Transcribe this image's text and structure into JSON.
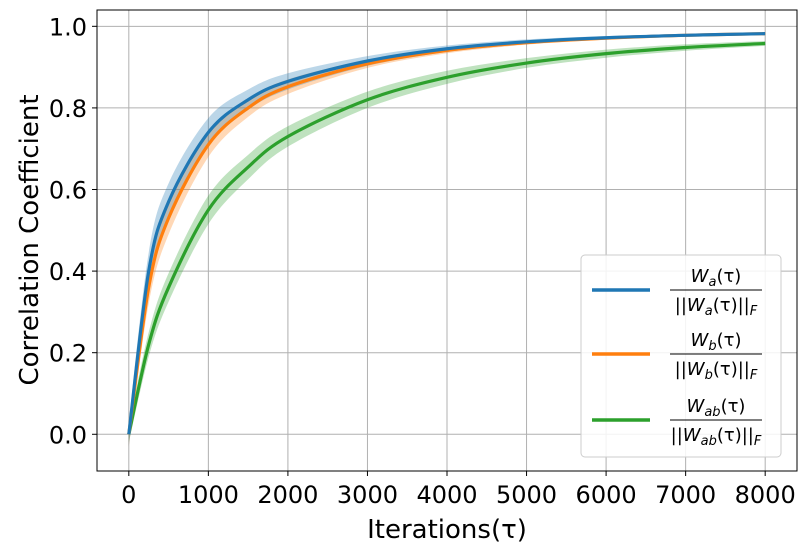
{
  "chart_data": {
    "type": "line",
    "xlabel": "Iterations(τ)",
    "ylabel": "Correlation Coefficient",
    "xlim": [
      -400,
      8400
    ],
    "ylim": [
      -0.09,
      1.04
    ],
    "xticks": [
      0,
      1000,
      2000,
      3000,
      4000,
      5000,
      6000,
      7000,
      8000
    ],
    "xtick_labels": [
      "0",
      "1000",
      "2000",
      "3000",
      "4000",
      "5000",
      "6000",
      "7000",
      "8000"
    ],
    "yticks": [
      0.0,
      0.2,
      0.4,
      0.6,
      0.8,
      1.0
    ],
    "ytick_labels": [
      "0.0",
      "0.2",
      "0.4",
      "0.6",
      "0.8",
      "1.0"
    ],
    "grid": true,
    "legend_position": "lower-right",
    "x": [
      0,
      250,
      500,
      1000,
      1500,
      2000,
      3000,
      4000,
      5000,
      6000,
      7000,
      8000
    ],
    "series": [
      {
        "name": "W_a(τ) / ||W_a(τ)||_F",
        "legend_label": {
          "num": "W",
          "num_sub": "a",
          "num_arg": "(τ)",
          "den_prefix": "||W",
          "den_sub": "a",
          "den_arg": "(τ)||",
          "den_norm": "F"
        },
        "color": "#1f77b4",
        "values": [
          0.0,
          0.4,
          0.57,
          0.74,
          0.82,
          0.865,
          0.915,
          0.945,
          0.962,
          0.972,
          0.978,
          0.982
        ],
        "band": [
          0.03,
          0.045,
          0.045,
          0.035,
          0.025,
          0.02,
          0.012,
          0.008,
          0.006,
          0.004,
          0.003,
          0.002
        ]
      },
      {
        "name": "W_b(τ) / ||W_b(τ)||_F",
        "legend_label": {
          "num": "W",
          "num_sub": "b",
          "num_arg": "(τ)",
          "den_prefix": "||W",
          "den_sub": "b",
          "den_arg": "(τ)||",
          "den_norm": "F"
        },
        "color": "#ff7f0e",
        "values": [
          0.0,
          0.36,
          0.53,
          0.71,
          0.8,
          0.852,
          0.908,
          0.941,
          0.96,
          0.971,
          0.978,
          0.982
        ],
        "band": [
          0.03,
          0.04,
          0.04,
          0.03,
          0.022,
          0.018,
          0.01,
          0.007,
          0.005,
          0.004,
          0.003,
          0.002
        ]
      },
      {
        "name": "W_ab(τ) / ||W_ab(τ)||_F",
        "legend_label": {
          "num": "W",
          "num_sub": "ab",
          "num_arg": "(τ)",
          "den_prefix": "||W",
          "den_sub": "ab",
          "den_arg": "(τ)||",
          "den_norm": "F"
        },
        "color": "#2ca02c",
        "values": [
          0.0,
          0.22,
          0.36,
          0.55,
          0.655,
          0.73,
          0.82,
          0.875,
          0.91,
          0.933,
          0.948,
          0.958
        ],
        "band": [
          0.02,
          0.03,
          0.035,
          0.035,
          0.03,
          0.025,
          0.02,
          0.016,
          0.012,
          0.01,
          0.008,
          0.006
        ]
      }
    ]
  }
}
